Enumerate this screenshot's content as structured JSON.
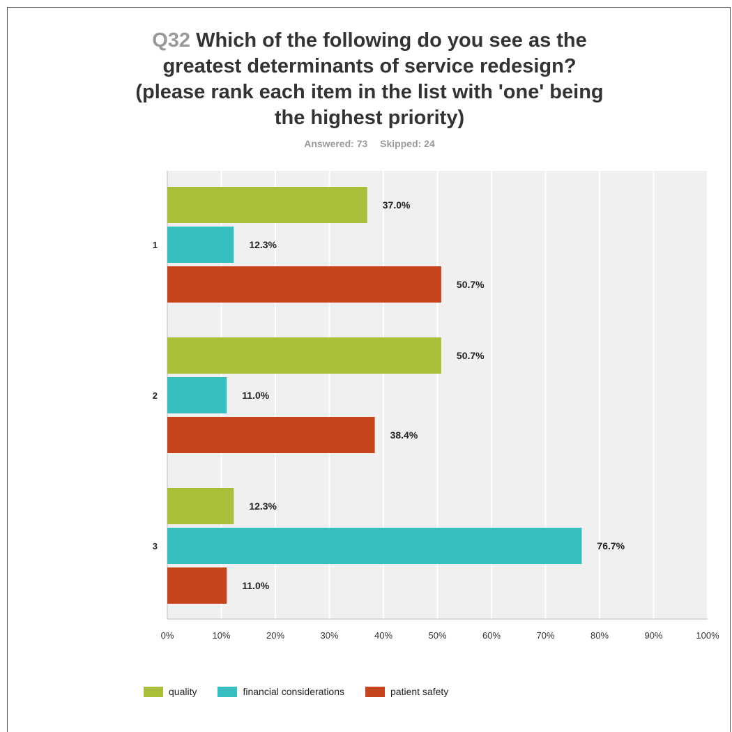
{
  "question_number": "Q32",
  "question_text": "Which of the following do you see as the greatest determinants of service redesign? (please rank each item in the list with 'one' being the highest priority)",
  "answered": "Answered: 73",
  "skipped": "Skipped: 24",
  "chart_data": {
    "type": "bar",
    "orientation": "horizontal",
    "categories": [
      "1",
      "2",
      "3"
    ],
    "series": [
      {
        "name": "quality",
        "color": "#a8bf3a",
        "values": [
          37.0,
          50.7,
          12.3
        ],
        "labels": [
          "37.0%",
          "50.7%",
          "12.3%"
        ]
      },
      {
        "name": "financial considerations",
        "color": "#35bfc0",
        "values": [
          12.3,
          11.0,
          76.7
        ],
        "labels": [
          "12.3%",
          "11.0%",
          "76.7%"
        ]
      },
      {
        "name": "patient safety",
        "color": "#c8441d",
        "values": [
          50.7,
          38.4,
          11.0
        ],
        "labels": [
          "50.7%",
          "38.4%",
          "11.0%"
        ]
      }
    ],
    "xlim": [
      0,
      100
    ],
    "x_ticks": [
      "0%",
      "10%",
      "20%",
      "30%",
      "40%",
      "50%",
      "60%",
      "70%",
      "80%",
      "90%",
      "100%"
    ],
    "grid": true,
    "legend_position": "bottom-left"
  }
}
